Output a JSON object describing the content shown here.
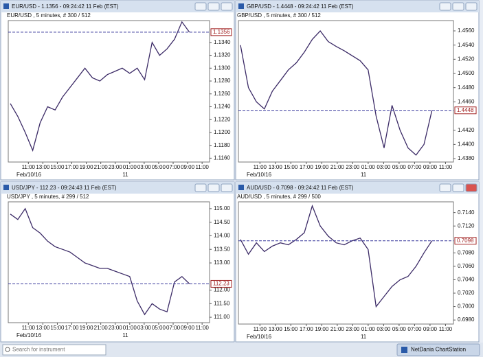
{
  "chart_data": [
    {
      "type": "line",
      "window_title": "EUR/USD - 1.1356 - 09:24:42  11 Feb (EST)",
      "title": "EUR/USD , 5 minutes, # 300 / 512",
      "x_labels": [
        "11:00",
        "13:00",
        "15:00",
        "17:00",
        "19:00",
        "21:00",
        "23:00",
        "01:00",
        "03:00",
        "05:00",
        "07:00",
        "09:00",
        "11:00"
      ],
      "date_labels": [
        "Feb/10/16",
        "11"
      ],
      "values": [
        1.1245,
        1.1225,
        1.12,
        1.1172,
        1.1215,
        1.124,
        1.1235,
        1.1255,
        1.127,
        1.1285,
        1.13,
        1.1285,
        1.128,
        1.129,
        1.1295,
        1.13,
        1.1292,
        1.13,
        1.1282,
        1.134,
        1.132,
        1.133,
        1.1345,
        1.1372,
        1.1356
      ],
      "color": "#3b2a66",
      "last": 1.1356,
      "ylim": [
        1.1154,
        1.1374
      ],
      "yticks": [
        {
          "value": 1.116,
          "label": "1.1160"
        },
        {
          "value": 1.118,
          "label": "1.1180"
        },
        {
          "value": 1.12,
          "label": "1.1200"
        },
        {
          "value": 1.122,
          "label": "1.1220"
        },
        {
          "value": 1.124,
          "label": "1.1240"
        },
        {
          "value": 1.126,
          "label": "1.1260"
        },
        {
          "value": 1.128,
          "label": "1.1280"
        },
        {
          "value": 1.13,
          "label": "1.1300"
        },
        {
          "value": 1.132,
          "label": "1.1320"
        },
        {
          "value": 1.134,
          "label": "1.1340"
        }
      ]
    },
    {
      "type": "line",
      "window_title": "GBP/USD - 1.4448 - 09:24:42  11 Feb (EST)",
      "title": "GBP/USD , 5 minutes, # 300 / 512",
      "x_labels": [
        "11:00",
        "13:00",
        "15:00",
        "17:00",
        "19:00",
        "21:00",
        "23:00",
        "01:00",
        "03:00",
        "05:00",
        "07:00",
        "09:00",
        "11:00"
      ],
      "date_labels": [
        "Feb/10/16",
        "11"
      ],
      "values": [
        1.454,
        1.448,
        1.446,
        1.445,
        1.4475,
        1.449,
        1.4505,
        1.4515,
        1.453,
        1.4548,
        1.456,
        1.4545,
        1.4538,
        1.4532,
        1.4525,
        1.4518,
        1.4505,
        1.444,
        1.4395,
        1.4455,
        1.442,
        1.4395,
        1.4385,
        1.44,
        1.4448
      ],
      "color": "#3b2a66",
      "last": 1.4448,
      "ylim": [
        1.43752,
        1.45745
      ],
      "yticks": [
        {
          "value": 1.438,
          "label": "1.4380"
        },
        {
          "value": 1.44,
          "label": "1.4400"
        },
        {
          "value": 1.442,
          "label": "1.4420"
        },
        {
          "value": 1.446,
          "label": "1.4460"
        },
        {
          "value": 1.448,
          "label": "1.4480"
        },
        {
          "value": 1.45,
          "label": "1.4500"
        },
        {
          "value": 1.452,
          "label": "1.4520"
        },
        {
          "value": 1.454,
          "label": "1.4540"
        },
        {
          "value": 1.456,
          "label": "1.4560"
        }
      ]
    },
    {
      "type": "line",
      "window_title": "USD/JPY - 112.23 - 09:24:43  11 Feb (EST)",
      "title": "USD/JPY , 5 minutes, # 299 / 512",
      "x_labels": [
        "11:00",
        "13:00",
        "15:00",
        "17:00",
        "19:00",
        "21:00",
        "23:00",
        "01:00",
        "03:00",
        "05:00",
        "07:00",
        "09:00",
        "11:00"
      ],
      "date_labels": [
        "Feb/10/16",
        "11"
      ],
      "values": [
        114.8,
        114.6,
        115,
        114.3,
        114.1,
        113.8,
        113.6,
        113.5,
        113.4,
        113.2,
        113,
        112.9,
        112.8,
        112.8,
        112.7,
        112.6,
        112.5,
        111.6,
        111.1,
        111.5,
        111.3,
        111.2,
        112.3,
        112.5,
        112.23
      ],
      "color": "#3b2a66",
      "last": 112.23,
      "ylim": [
        110.8,
        115.25
      ],
      "yticks": [
        {
          "value": 111,
          "label": "111.00"
        },
        {
          "value": 111.5,
          "label": "111.50"
        },
        {
          "value": 112,
          "label": "112.00"
        },
        {
          "value": 113,
          "label": "113.00"
        },
        {
          "value": 113.5,
          "label": "113.50"
        },
        {
          "value": 114,
          "label": "114.00"
        },
        {
          "value": 114.5,
          "label": "114.50"
        },
        {
          "value": 115,
          "label": "115.00"
        }
      ]
    },
    {
      "type": "line",
      "window_title": "AUD/USD - 0.7098 - 09:24:42  11 Feb (EST)",
      "title": "AUD/USD , 5 minutes, # 299 / 500",
      "x_labels": [
        "11:00",
        "13:00",
        "15:00",
        "17:00",
        "19:00",
        "21:00",
        "23:00",
        "01:00",
        "03:00",
        "05:00",
        "07:00",
        "09:00",
        "11:00"
      ],
      "date_labels": [
        "Feb/10/16",
        "11"
      ],
      "values": [
        0.71,
        0.7078,
        0.7095,
        0.7082,
        0.709,
        0.7095,
        0.7092,
        0.71,
        0.711,
        0.715,
        0.712,
        0.7105,
        0.7095,
        0.7092,
        0.7098,
        0.7102,
        0.7085,
        0.7,
        0.7015,
        0.703,
        0.704,
        0.7045,
        0.706,
        0.708,
        0.7098
      ],
      "color": "#3b2a66",
      "last": 0.7098,
      "ylim": [
        0.6974,
        0.7156
      ],
      "yticks": [
        {
          "value": 0.698,
          "label": "0.6980"
        },
        {
          "value": 0.7,
          "label": "0.7000"
        },
        {
          "value": 0.702,
          "label": "0.7020"
        },
        {
          "value": 0.704,
          "label": "0.7040"
        },
        {
          "value": 0.706,
          "label": "0.7060"
        },
        {
          "value": 0.708,
          "label": "0.7080"
        },
        {
          "value": 0.712,
          "label": "0.7120"
        },
        {
          "value": 0.714,
          "label": "0.7140"
        }
      ]
    }
  ],
  "footer": {
    "search_placeholder": "Search for instrument",
    "app_name": "NetDania ChartStation"
  }
}
